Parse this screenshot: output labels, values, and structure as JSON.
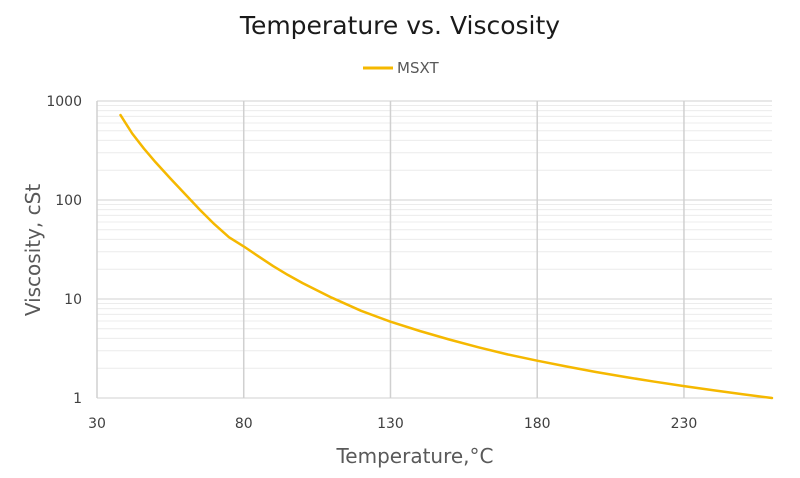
{
  "chart_data": {
    "type": "line",
    "title": "Temperature vs. Viscosity",
    "xlabel": "Temperature,°C",
    "ylabel": "Viscosity, cSt",
    "xlim": [
      30,
      260
    ],
    "ylim": [
      1,
      1000
    ],
    "yscale": "log",
    "xticks": [
      "30",
      "80",
      "130",
      "180",
      "230"
    ],
    "yticks": [
      "1",
      "10",
      "100",
      "1000"
    ],
    "grid": true,
    "legend": "top-center",
    "series": [
      {
        "name": "MSXT",
        "color": "#F5B800",
        "x": [
          38,
          42,
          46,
          50,
          55,
          60,
          65,
          70,
          75,
          80,
          85,
          90,
          95,
          100,
          110,
          120,
          130,
          140,
          150,
          160,
          170,
          180,
          190,
          200,
          210,
          220,
          230,
          240,
          250,
          260
        ],
        "y": [
          720,
          470,
          330,
          240,
          165,
          115,
          80,
          57,
          42,
          34,
          27,
          21.5,
          17.5,
          14.5,
          10.3,
          7.6,
          5.9,
          4.75,
          3.9,
          3.25,
          2.75,
          2.38,
          2.08,
          1.83,
          1.63,
          1.46,
          1.32,
          1.2,
          1.09,
          1.0
        ]
      }
    ]
  }
}
